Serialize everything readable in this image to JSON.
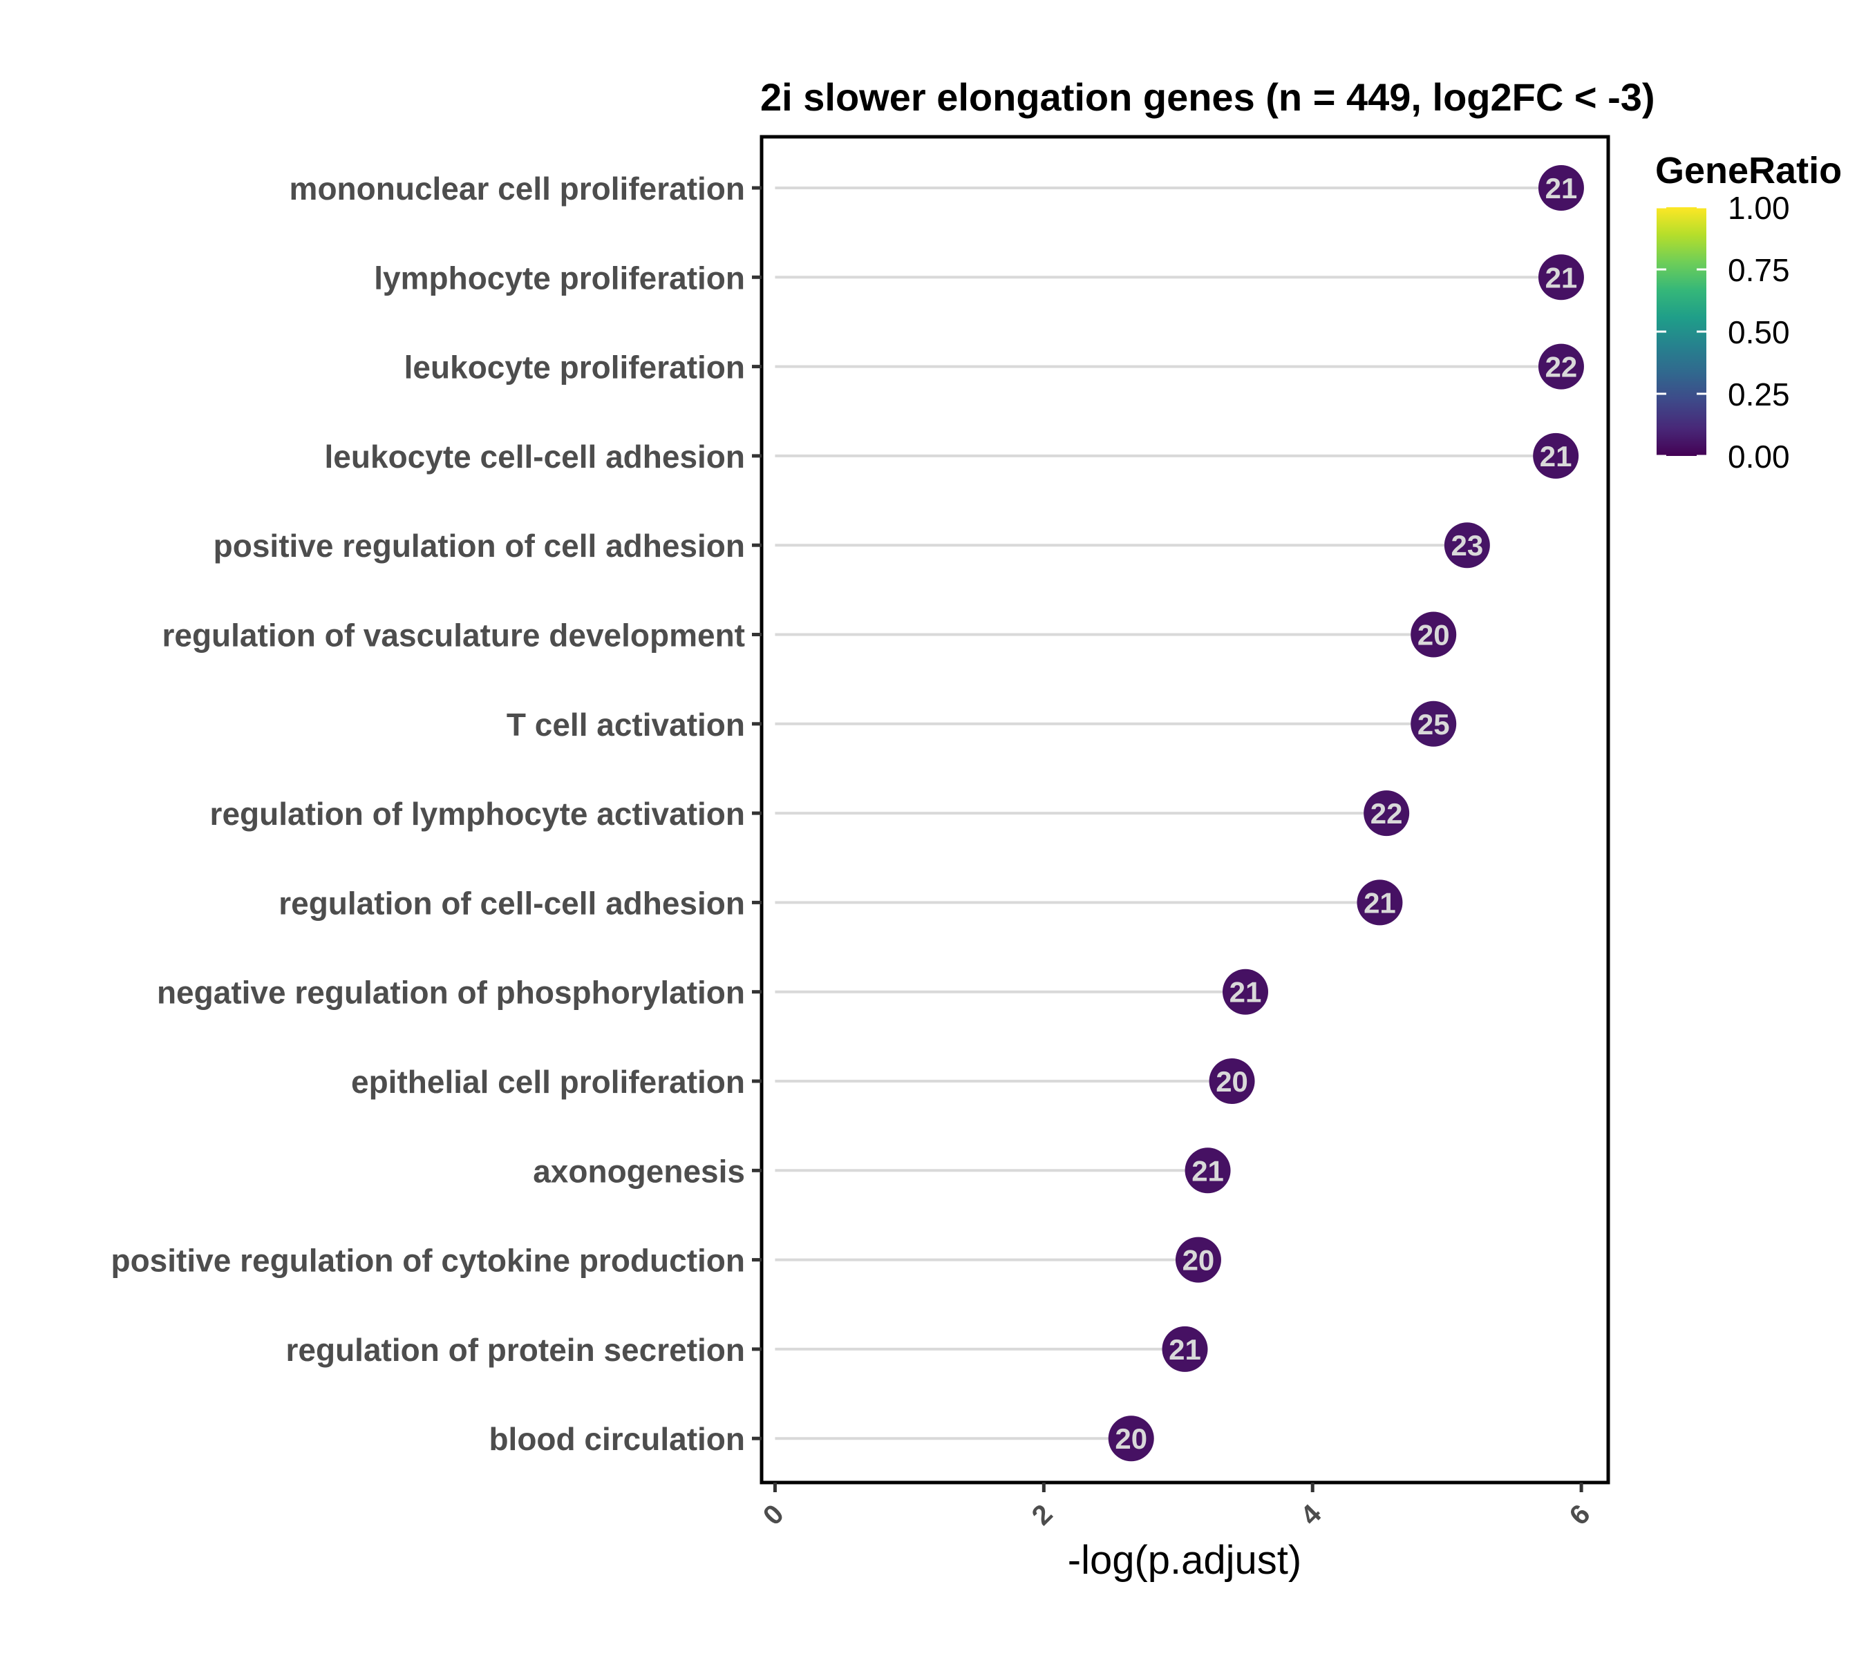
{
  "chart_data": {
    "type": "lollipop",
    "title": "2i slower elongation genes (n = 449, log2FC < -3)",
    "xlabel": "-log(p.adjust)",
    "ylabel": "",
    "xlim": [
      -0.1,
      6.2
    ],
    "x_ticks": [
      "0",
      "2",
      "4",
      "6"
    ],
    "x_tick_values": [
      0,
      2,
      4,
      6
    ],
    "categories": [
      "mononuclear cell proliferation",
      "lymphocyte proliferation",
      "leukocyte proliferation",
      "leukocyte cell-cell adhesion",
      "positive regulation of cell adhesion",
      "regulation of vasculature development",
      "T cell activation",
      "regulation of lymphocyte activation",
      "regulation of cell-cell adhesion",
      "negative regulation of phosphorylation",
      "epithelial cell proliferation",
      "axonogenesis",
      "positive regulation of cytokine production",
      "regulation of protein secretion",
      "blood circulation"
    ],
    "values": [
      5.85,
      5.85,
      5.85,
      5.81,
      5.15,
      4.9,
      4.9,
      4.55,
      4.5,
      3.5,
      3.4,
      3.22,
      3.15,
      3.05,
      2.65
    ],
    "counts": [
      "21",
      "21",
      "22",
      "21",
      "23",
      "20",
      "25",
      "22",
      "21",
      "21",
      "20",
      "21",
      "20",
      "21",
      "20"
    ],
    "gene_ratio": [
      0.047,
      0.047,
      0.049,
      0.047,
      0.051,
      0.045,
      0.056,
      0.049,
      0.047,
      0.047,
      0.045,
      0.047,
      0.045,
      0.047,
      0.045
    ],
    "legend": {
      "title": "GeneRatio",
      "ticks": [
        "1.00",
        "0.75",
        "0.50",
        "0.25",
        "0.00"
      ],
      "tick_values": [
        1.0,
        0.75,
        0.5,
        0.25,
        0.0
      ],
      "colormap": "viridis",
      "position": "top-right"
    },
    "colors": {
      "segment": "#d9d9d9",
      "viridis": [
        "#440154",
        "#482878",
        "#3e4989",
        "#31688e",
        "#26828e",
        "#1f9e89",
        "#35b779",
        "#6ece58",
        "#b5de2b",
        "#fde725"
      ],
      "panel_border": "#000000"
    },
    "grid": false
  }
}
